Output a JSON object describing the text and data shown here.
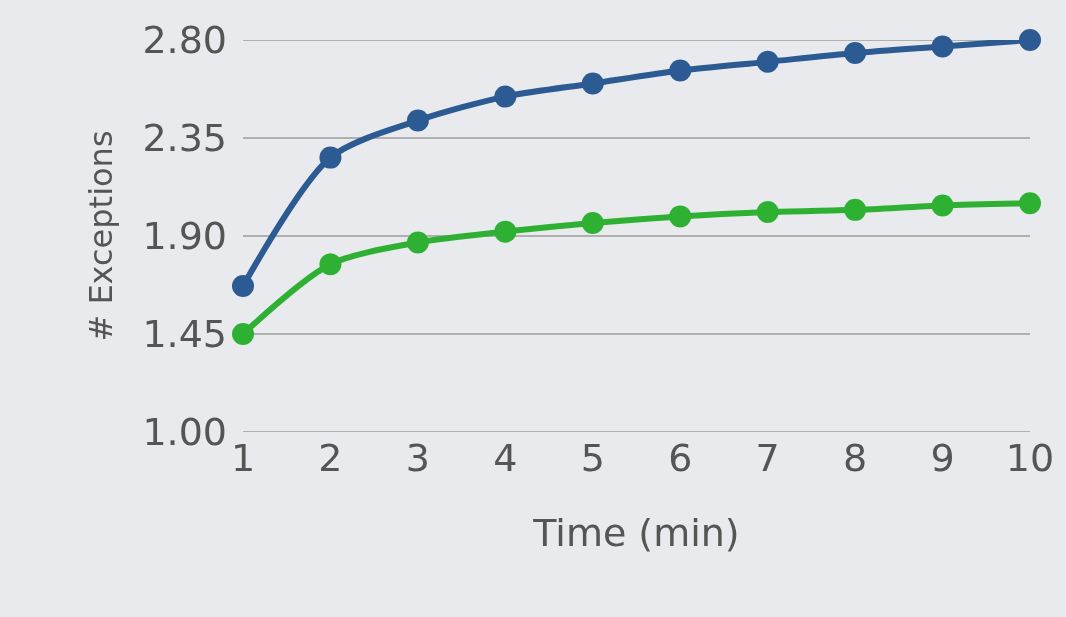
{
  "chart_data": {
    "type": "line",
    "xlabel": "Time (min)",
    "ylabel": "# Exceptions",
    "x": [
      1,
      2,
      3,
      4,
      5,
      6,
      7,
      8,
      9,
      10
    ],
    "series": [
      {
        "color": "#2c5a93",
        "values": [
          1.67,
          2.26,
          2.43,
          2.54,
          2.6,
          2.66,
          2.7,
          2.74,
          2.77,
          2.8
        ]
      },
      {
        "color": "#2eb132",
        "values": [
          1.45,
          1.77,
          1.87,
          1.92,
          1.96,
          1.99,
          2.01,
          2.02,
          2.04,
          2.05
        ]
      }
    ],
    "xlim": [
      1,
      10
    ],
    "xticks": [
      1,
      2,
      3,
      4,
      5,
      6,
      7,
      8,
      9,
      10
    ],
    "ylim": [
      1.0,
      2.8
    ],
    "yticks": [
      {
        "value": 1.0,
        "label": "1.00"
      },
      {
        "value": 1.45,
        "label": "1.45"
      },
      {
        "value": 1.9,
        "label": "1.90"
      },
      {
        "value": 2.35,
        "label": "2.35"
      },
      {
        "value": 2.8,
        "label": "2.80"
      }
    ],
    "grid": "y",
    "marker": "circle",
    "line_style": "solid"
  }
}
